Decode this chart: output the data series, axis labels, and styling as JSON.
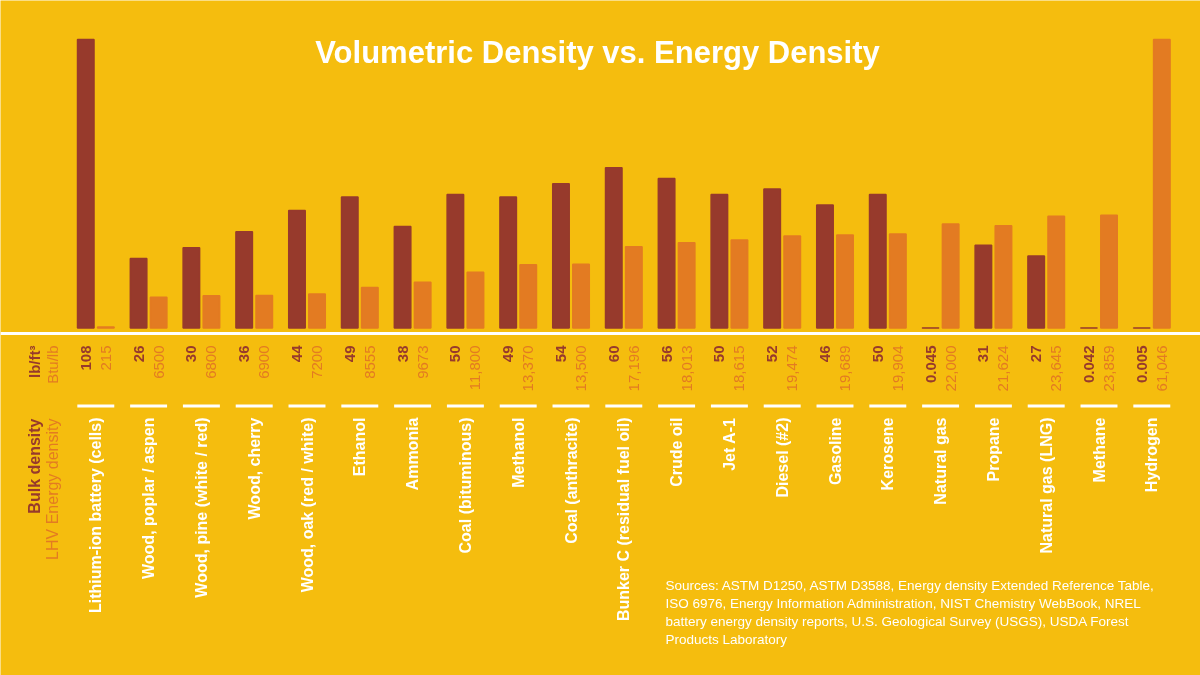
{
  "chart_data": {
    "type": "bar",
    "title": "Volumetric Density vs. Energy Density",
    "ylabel": "lb/ft³",
    "y2label": "Btu/lb",
    "categories": [
      "Lithium-ion battery (cells)",
      "Wood, poplar / aspen",
      "Wood, pine (white / red)",
      "Wood, cherry",
      "Wood, oak (red / white)",
      "Ethanol",
      "Ammonia",
      "Coal (bituminous)",
      "Methanol",
      "Coal (anthracite)",
      "Bunker C (residual fuel oil)",
      "Crude oil",
      "Jet A-1",
      "Diesel (#2)",
      "Gasoline",
      "Kerosene",
      "Natural gas",
      "Propane",
      "Natural gas (LNG)",
      "Methane",
      "Hydrogen"
    ],
    "series": [
      {
        "name": "Bulk density",
        "color": "#973a2c",
        "values": [
          108,
          26,
          30,
          36,
          44,
          49,
          38,
          50,
          49,
          54,
          60,
          56,
          50,
          52,
          46,
          50,
          0.045,
          31,
          27,
          0.042,
          0.005
        ],
        "value_labels": [
          "108",
          "26",
          "30",
          "36",
          "44",
          "49",
          "38",
          "50",
          "49",
          "54",
          "60",
          "56",
          "50",
          "52",
          "46",
          "50",
          "0.045",
          "31",
          "27",
          "0.042",
          "0.005"
        ]
      },
      {
        "name": "LHV Energy density",
        "color": "#e37b22",
        "axis": "y2",
        "values": [
          215,
          6500,
          6800,
          6900,
          7200,
          8555,
          9673,
          11800,
          13370,
          13500,
          17196,
          18013,
          18615,
          19474,
          19689,
          19904,
          22000,
          21624,
          23645,
          23859,
          61046
        ],
        "value_labels": [
          "215",
          "6500",
          "6800",
          "6900",
          "7200",
          "8555",
          "9673",
          "11,800",
          "13,370",
          "13,500",
          "17,196",
          "18,013",
          "18,615",
          "19,474",
          "19,689",
          "19,904",
          "22,000",
          "21,624",
          "23,645",
          "23,859",
          "61,046"
        ]
      }
    ],
    "ylim": [
      0,
      108
    ],
    "y2lim": [
      0,
      61046
    ],
    "annotations": [
      "Sources: ASTM D1250, ASTM D3588, Energy density Extended Reference Table, ISO 6976, Energy Information Administration, NIST Chemistry WebBook, NREL battery energy density reports, U.S. Geological Survey (USGS), USDA Forest Products Laboratory"
    ]
  }
}
